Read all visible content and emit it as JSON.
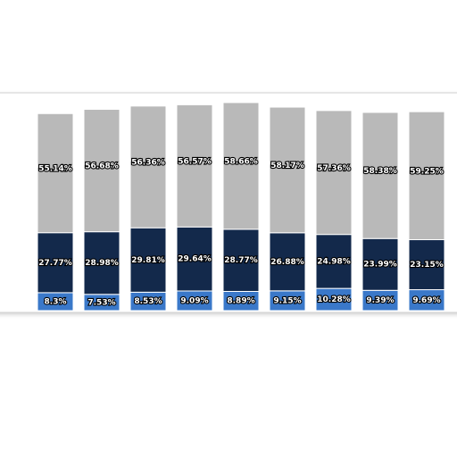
{
  "chart_data": {
    "type": "stacked_bar",
    "categories": [
      null,
      null,
      null,
      null,
      null,
      null,
      null,
      null,
      null
    ],
    "ylim": [
      0,
      100
    ],
    "series": [
      {
        "color": "#3a78c9",
        "values": [
          8.3,
          7.53,
          8.53,
          9.09,
          8.89,
          9.15,
          10.28,
          9.39,
          9.69
        ],
        "value_labels": [
          "8.3%",
          "7.53%",
          "8.53%",
          "9.09%",
          "8.89%",
          "9.15%",
          "10.28%",
          "9.39%",
          "9.69%"
        ]
      },
      {
        "color": "#13294b",
        "values": [
          27.77,
          28.98,
          29.81,
          29.64,
          28.77,
          26.88,
          24.98,
          23.99,
          23.15
        ],
        "value_labels": [
          "27.77%",
          "28.98%",
          "29.81%",
          "29.64%",
          "28.77%",
          "26.88%",
          "24.98%",
          "23.99%",
          "23.15%"
        ]
      },
      {
        "color": "#b9b9b9",
        "values": [
          55.14,
          56.68,
          56.36,
          56.57,
          58.66,
          58.17,
          57.36,
          58.38,
          59.25
        ],
        "value_labels": [
          "55.14%",
          "56.68%",
          "56.36%",
          "56.57%",
          "58.66%",
          "58.17%",
          "57.36%",
          "58.38%",
          "59.25%"
        ]
      }
    ]
  }
}
